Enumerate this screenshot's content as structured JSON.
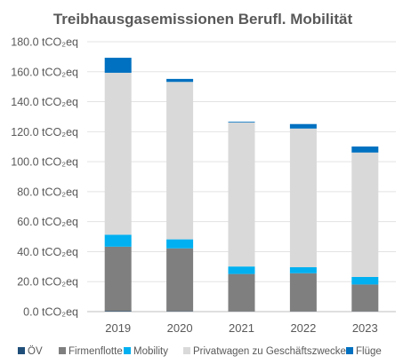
{
  "chart_data": {
    "type": "bar",
    "stacked": true,
    "title": "Treibhausgasemissionen Berufl. Mobilität",
    "xlabel": "",
    "ylabel": "",
    "categories": [
      "2019",
      "2020",
      "2021",
      "2022",
      "2023"
    ],
    "ylim": [
      0,
      180
    ],
    "y_tick_labels": [
      "0.0 tCO₂eq",
      "20.0 tCO₂eq",
      "40.0 tCO₂eq",
      "60.0 tCO₂eq",
      "80.0 tCO₂eq",
      "100.0 tCO₂eq",
      "120.0 tCO₂eq",
      "140.0 tCO₂eq",
      "160.0 tCO₂eq",
      "180.0 tCO₂eq"
    ],
    "grid": true,
    "legend_position": "bottom",
    "series": [
      {
        "name": "ÖV",
        "color": "#1f4e79",
        "values": [
          0.3,
          0.2,
          0.1,
          0.1,
          0.1
        ]
      },
      {
        "name": "Firmenflotte",
        "color": "#7f7f7f",
        "values": [
          43,
          42,
          25,
          25.5,
          18
        ]
      },
      {
        "name": "Mobility",
        "color": "#00b0f0",
        "values": [
          8,
          6,
          5,
          4,
          5
        ]
      },
      {
        "name": "Privatwagen zu Geschäftszwecken",
        "color": "#d9d9d9",
        "values": [
          108,
          105,
          96,
          92.5,
          83
        ]
      },
      {
        "name": "Flüge",
        "color": "#0070c0",
        "values": [
          10,
          2,
          0.5,
          3,
          4
        ]
      }
    ]
  }
}
